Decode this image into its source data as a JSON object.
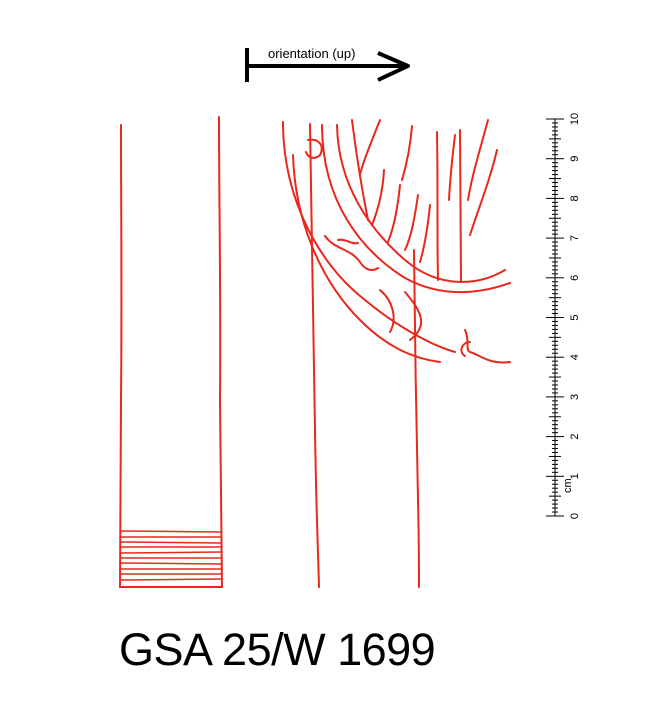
{
  "orientation": {
    "label": "orientation (up)"
  },
  "scale": {
    "unit": "cm",
    "labels": [
      "0",
      "1",
      "2",
      "3",
      "4",
      "5",
      "6",
      "7",
      "8",
      "9",
      "10"
    ]
  },
  "sheet": {
    "id": "GSA 25/W 1699"
  },
  "colors": {
    "drawing": "#e8281c",
    "ink": "#000000"
  }
}
